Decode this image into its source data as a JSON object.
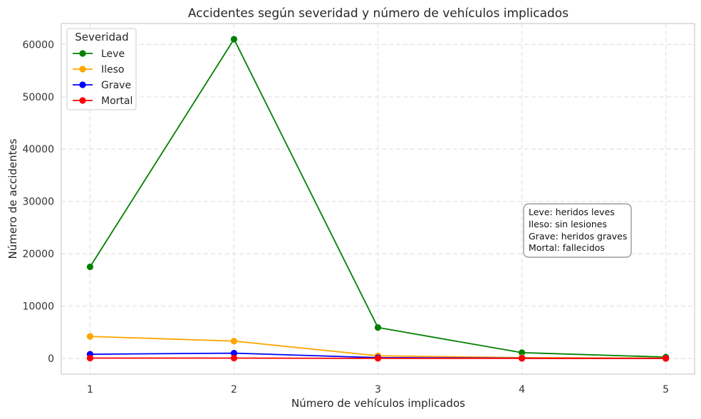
{
  "chart_data": {
    "type": "line",
    "title": "Accidentes según severidad y número de vehículos implicados",
    "xlabel": "Número de vehículos implicados",
    "ylabel": "Número de accidentes",
    "x": [
      1,
      2,
      3,
      4,
      5
    ],
    "x_tick_labels": [
      "1",
      "2",
      "3",
      "4",
      "5"
    ],
    "xlim": [
      0.8,
      5.2
    ],
    "ylim": [
      -3000,
      64000
    ],
    "y_ticks": [
      0,
      10000,
      20000,
      30000,
      40000,
      50000,
      60000
    ],
    "y_tick_labels": [
      "0",
      "10000",
      "20000",
      "30000",
      "40000",
      "50000",
      "60000"
    ],
    "grid": true,
    "legend": {
      "title": "Severidad",
      "placement": "top-left"
    },
    "series": [
      {
        "name": "Leve",
        "color": "#008000",
        "values": [
          17500,
          61000,
          5900,
          1100,
          250
        ]
      },
      {
        "name": "Ileso",
        "color": "#FFA500",
        "values": [
          4200,
          3300,
          500,
          150,
          50
        ]
      },
      {
        "name": "Grave",
        "color": "#0000FF",
        "values": [
          800,
          1000,
          150,
          30,
          10
        ]
      },
      {
        "name": "Mortal",
        "color": "#FF0000",
        "values": [
          60,
          60,
          15,
          5,
          2
        ]
      }
    ],
    "annotation": {
      "lines": [
        "Leve: heridos leves",
        "Ileso: sin lesiones",
        "Grave: heridos graves",
        "Mortal: fallecidos"
      ]
    }
  }
}
